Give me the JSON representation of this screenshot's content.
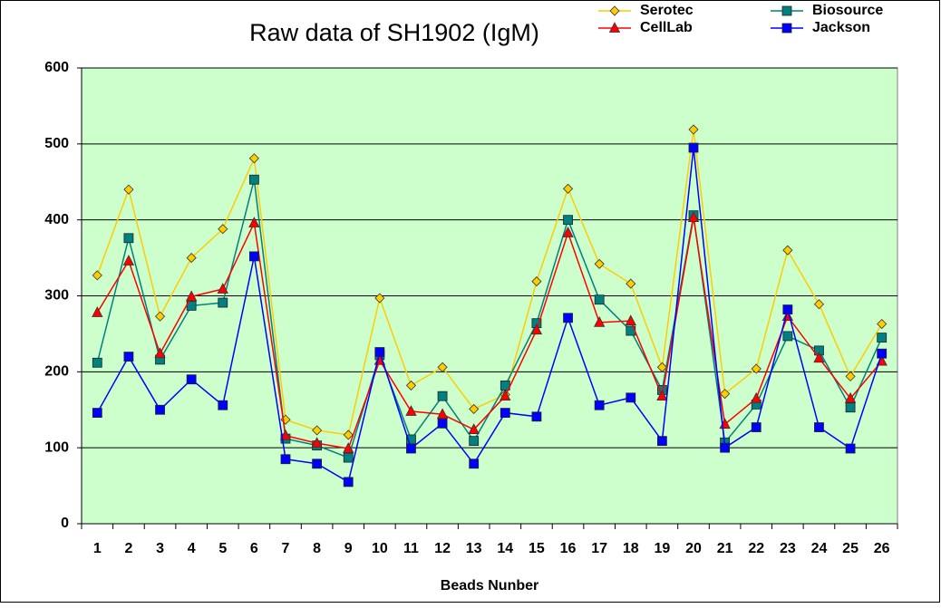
{
  "chart_data": {
    "type": "line",
    "title": "Raw data of SH1902 (IgM)",
    "x_label": "Beads Nunber",
    "categories": [
      "1",
      "2",
      "3",
      "4",
      "5",
      "6",
      "7",
      "8",
      "9",
      "10",
      "11",
      "12",
      "13",
      "14",
      "15",
      "16",
      "17",
      "18",
      "19",
      "20",
      "21",
      "22",
      "23",
      "24",
      "25",
      "26"
    ],
    "series": [
      {
        "name": "Serotec",
        "color": "#ffcc00",
        "marker": "diamond",
        "values": [
          327,
          440,
          273,
          350,
          388,
          481,
          137,
          123,
          117,
          297,
          182,
          206,
          151,
          170,
          319,
          441,
          342,
          316,
          206,
          519,
          171,
          204,
          360,
          289,
          194,
          263
        ]
      },
      {
        "name": "Biosource",
        "color": "#008080",
        "marker": "square",
        "values": [
          212,
          376,
          216,
          287,
          291,
          453,
          112,
          103,
          87,
          222,
          111,
          168,
          109,
          182,
          264,
          400,
          295,
          254,
          176,
          406,
          107,
          157,
          247,
          228,
          153,
          245
        ]
      },
      {
        "name": "CellLab",
        "color": "#ff0000",
        "marker": "triangle",
        "values": [
          278,
          346,
          224,
          299,
          309,
          396,
          116,
          106,
          99,
          215,
          148,
          144,
          124,
          168,
          255,
          383,
          265,
          267,
          168,
          403,
          131,
          165,
          273,
          218,
          165,
          214
        ]
      },
      {
        "name": "Jackson",
        "color": "#0000ff",
        "marker": "square",
        "values": [
          146,
          220,
          150,
          190,
          156,
          352,
          85,
          79,
          55,
          226,
          99,
          132,
          79,
          146,
          141,
          271,
          156,
          166,
          109,
          495,
          100,
          127,
          282,
          127,
          99,
          224
        ]
      }
    ],
    "ylim": [
      0,
      600
    ],
    "yticks": [
      0,
      100,
      200,
      300,
      400,
      500,
      600
    ],
    "grid": true,
    "plot_background": "#ccffcc"
  }
}
